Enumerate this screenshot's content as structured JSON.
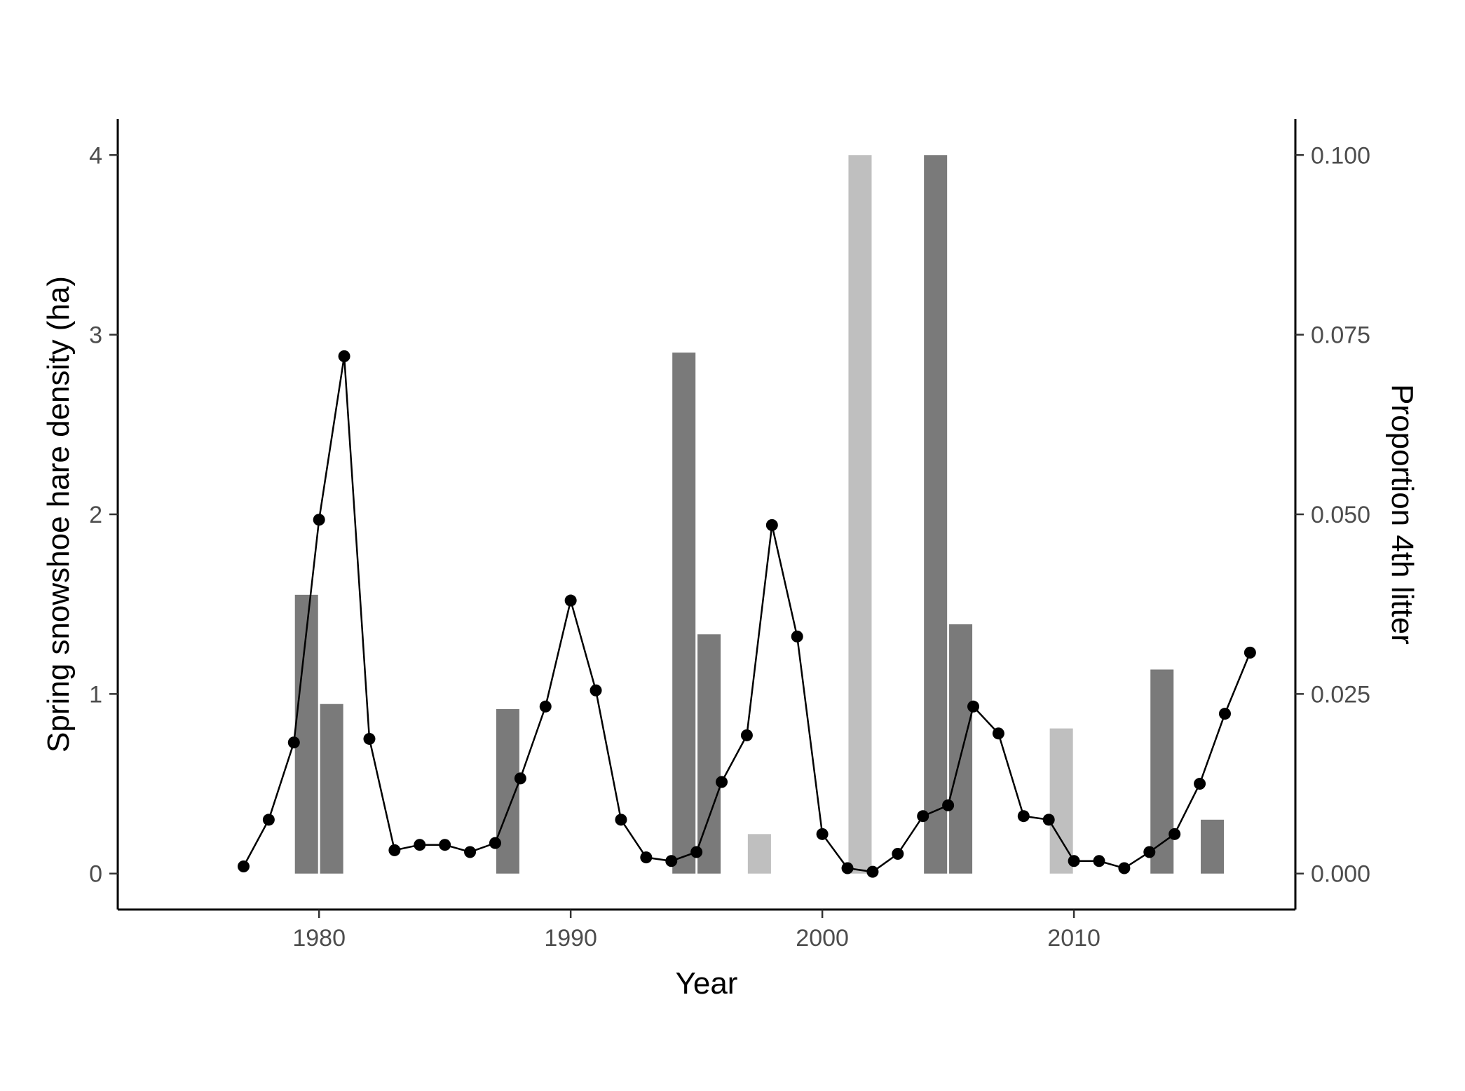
{
  "chart_data": {
    "type": "bar",
    "xlabel": "Year",
    "ylabel": "Spring snowshoe hare density (ha)",
    "y2label": "Proportion 4th litter",
    "xlim": [
      1972,
      2018.8
    ],
    "ylim": [
      -0.2,
      4.2
    ],
    "y2lim": [
      -0.005,
      0.105
    ],
    "xticks": [
      1980,
      1990,
      2000,
      2010
    ],
    "yticks": [
      0,
      1,
      2,
      3,
      4
    ],
    "y2ticks": [
      "0.000",
      "0.025",
      "0.050",
      "0.075",
      "0.100"
    ],
    "y2tick_values": [
      0,
      0.025,
      0.05,
      0.075,
      0.1
    ],
    "grid": false,
    "legend": "none",
    "colors": {
      "bar_dark": "#7a7a7a",
      "bar_light": "#bfbfbf",
      "line": "#000000",
      "axis": "#000000"
    },
    "bars": [
      {
        "x": 1979.5,
        "proportion": 0.0388,
        "shade": "dark"
      },
      {
        "x": 1980.5,
        "proportion": 0.0236,
        "shade": "dark"
      },
      {
        "x": 1987.5,
        "proportion": 0.0229,
        "shade": "dark"
      },
      {
        "x": 1994.5,
        "proportion": 0.0725,
        "shade": "dark"
      },
      {
        "x": 1995.5,
        "proportion": 0.0333,
        "shade": "dark"
      },
      {
        "x": 1997.5,
        "proportion": 0.0055,
        "shade": "light"
      },
      {
        "x": 2001.5,
        "proportion": 0.1,
        "shade": "light"
      },
      {
        "x": 2004.5,
        "proportion": 0.1,
        "shade": "dark"
      },
      {
        "x": 2005.5,
        "proportion": 0.0347,
        "shade": "dark"
      },
      {
        "x": 2009.5,
        "proportion": 0.0202,
        "shade": "light"
      },
      {
        "x": 2013.5,
        "proportion": 0.0284,
        "shade": "dark"
      },
      {
        "x": 2015.5,
        "proportion": 0.0075,
        "shade": "dark"
      }
    ],
    "series": [
      {
        "type": "line",
        "x": [
          1977,
          1978,
          1979,
          1980,
          1981,
          1982,
          1983,
          1984,
          1985,
          1986,
          1987,
          1988,
          1989,
          1990,
          1991,
          1992,
          1993,
          1994,
          1995,
          1996,
          1997,
          1998,
          1999,
          2000,
          2001,
          2002,
          2003,
          2004,
          2005,
          2006,
          2007,
          2008,
          2009,
          2010,
          2011,
          2012,
          2013,
          2014,
          2015,
          2016,
          2017
        ],
        "values": [
          0.04,
          0.3,
          0.73,
          1.97,
          2.88,
          0.75,
          0.13,
          0.16,
          0.16,
          0.12,
          0.17,
          0.53,
          0.93,
          1.52,
          1.02,
          0.3,
          0.09,
          0.07,
          0.12,
          0.51,
          0.77,
          1.94,
          1.32,
          0.22,
          0.03,
          0.01,
          0.11,
          0.32,
          0.38,
          0.93,
          0.78,
          0.32,
          0.3,
          0.07,
          0.07,
          0.03,
          0.12,
          0.22,
          0.5,
          0.89,
          1.23
        ]
      }
    ]
  }
}
